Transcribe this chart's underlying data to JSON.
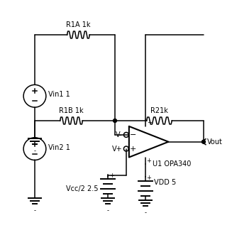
{
  "bg_color": "#ffffff",
  "line_color": "black",
  "lw": 1.1,
  "fig_width": 3.27,
  "fig_height": 3.31,
  "labels": {
    "R1A": "R1A 1k",
    "R1B": "R1B 1k",
    "R2": "R21k",
    "Vin1": "Vin1 1",
    "Vin2": "Vin2 1",
    "U1": "U1 OPA340",
    "Vout": "Vout",
    "Vcc": "Vcc/2 2.5",
    "VDD": "VDD 5",
    "Vminus": "V-",
    "Vplus": "V+"
  },
  "font_size": 7
}
